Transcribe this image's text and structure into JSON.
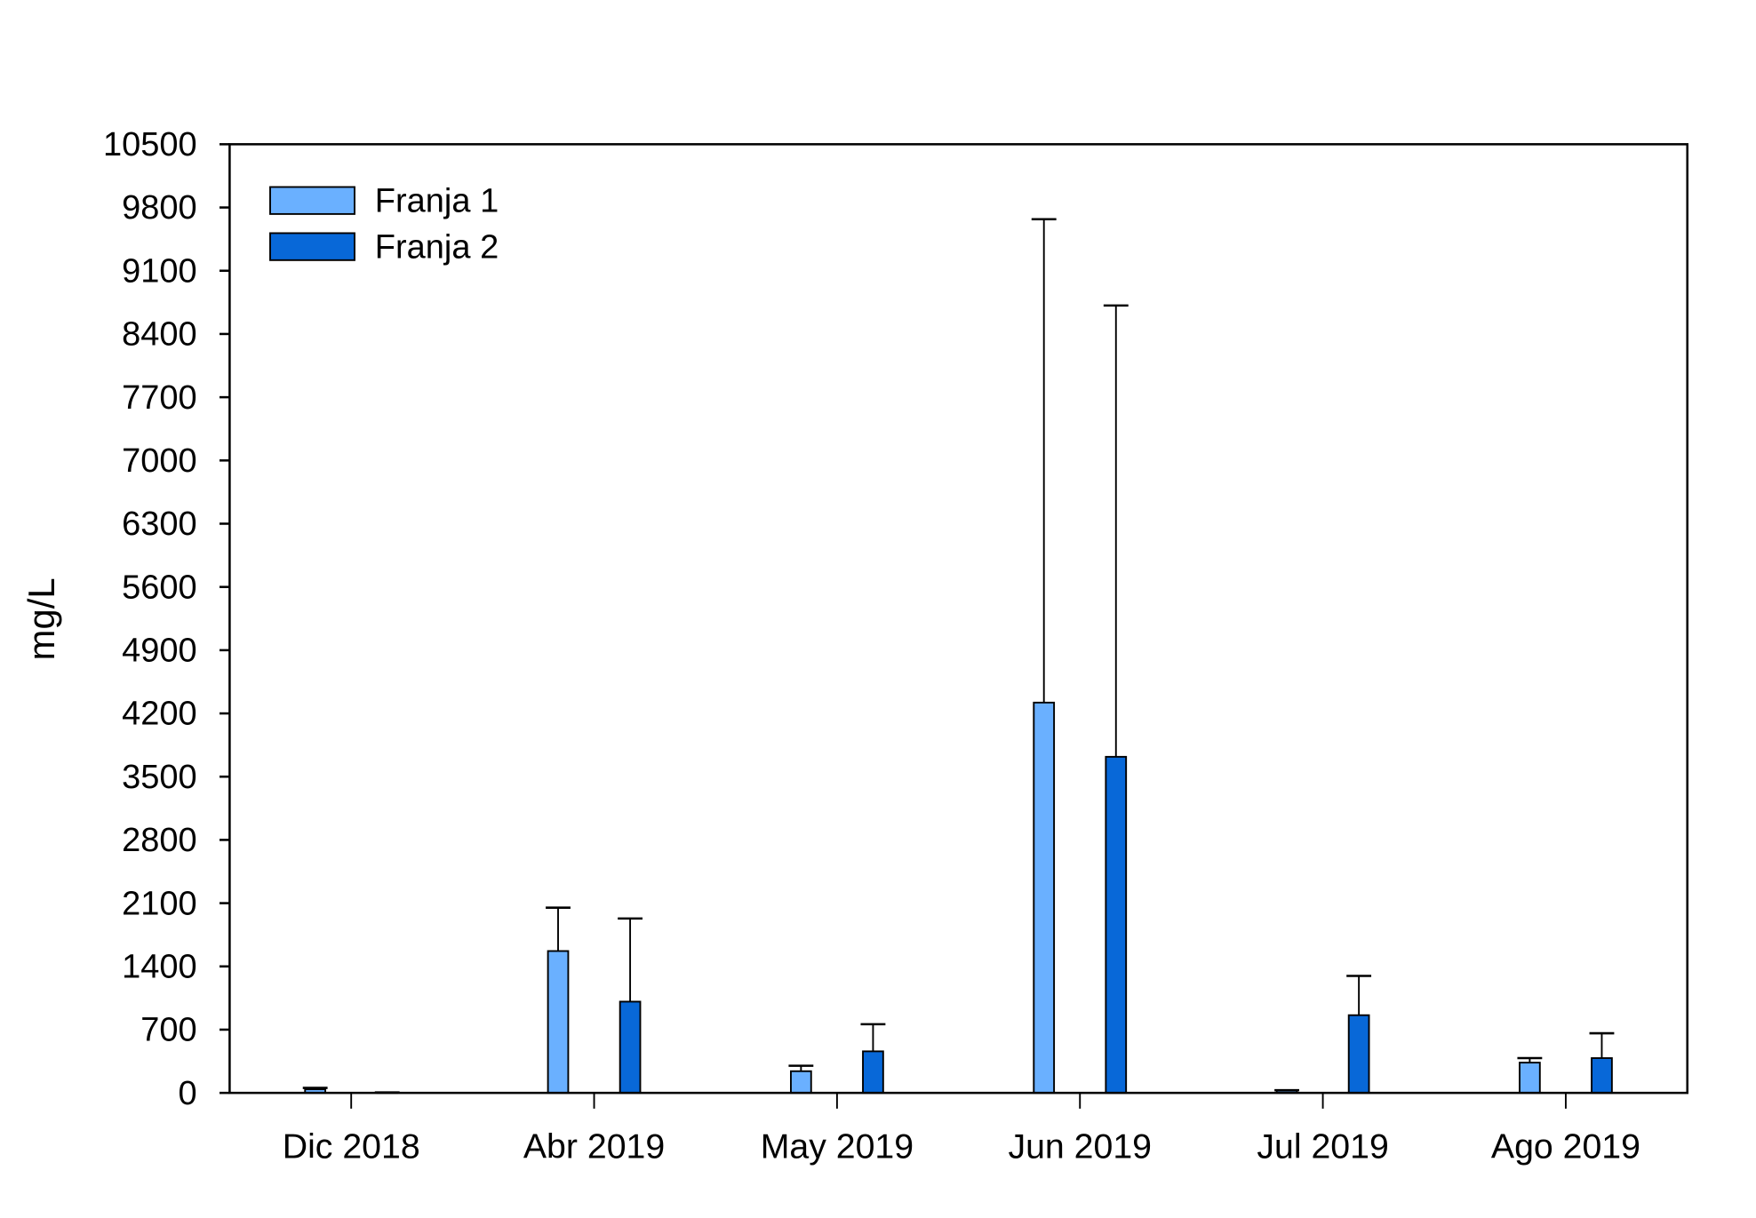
{
  "chart_data": {
    "type": "bar",
    "title": "",
    "xlabel": "",
    "ylabel": "mg/L",
    "ylim": [
      0,
      10500
    ],
    "yticks": [
      0,
      700,
      1400,
      2100,
      2800,
      3500,
      4200,
      4900,
      5600,
      6300,
      7000,
      7700,
      8400,
      9100,
      9800,
      10500
    ],
    "grid": false,
    "legend_position": "top-left",
    "categories": [
      "Dic 2018",
      "Abr 2019",
      "May 2019",
      "Jun 2019",
      "Jul 2019",
      "Ago 2019"
    ],
    "series": [
      {
        "name": "Franja 1",
        "color": "#6AB0FF",
        "values": [
          40,
          1570,
          240,
          4320,
          25,
          335
        ],
        "error_upper": [
          55,
          2050,
          300,
          9670,
          30,
          385
        ]
      },
      {
        "name": "Franja 2",
        "color": "#0868D8",
        "values": [
          5,
          1010,
          460,
          3720,
          860,
          385
        ],
        "error_upper": [
          5,
          1930,
          760,
          8715,
          1295,
          660
        ]
      }
    ]
  }
}
